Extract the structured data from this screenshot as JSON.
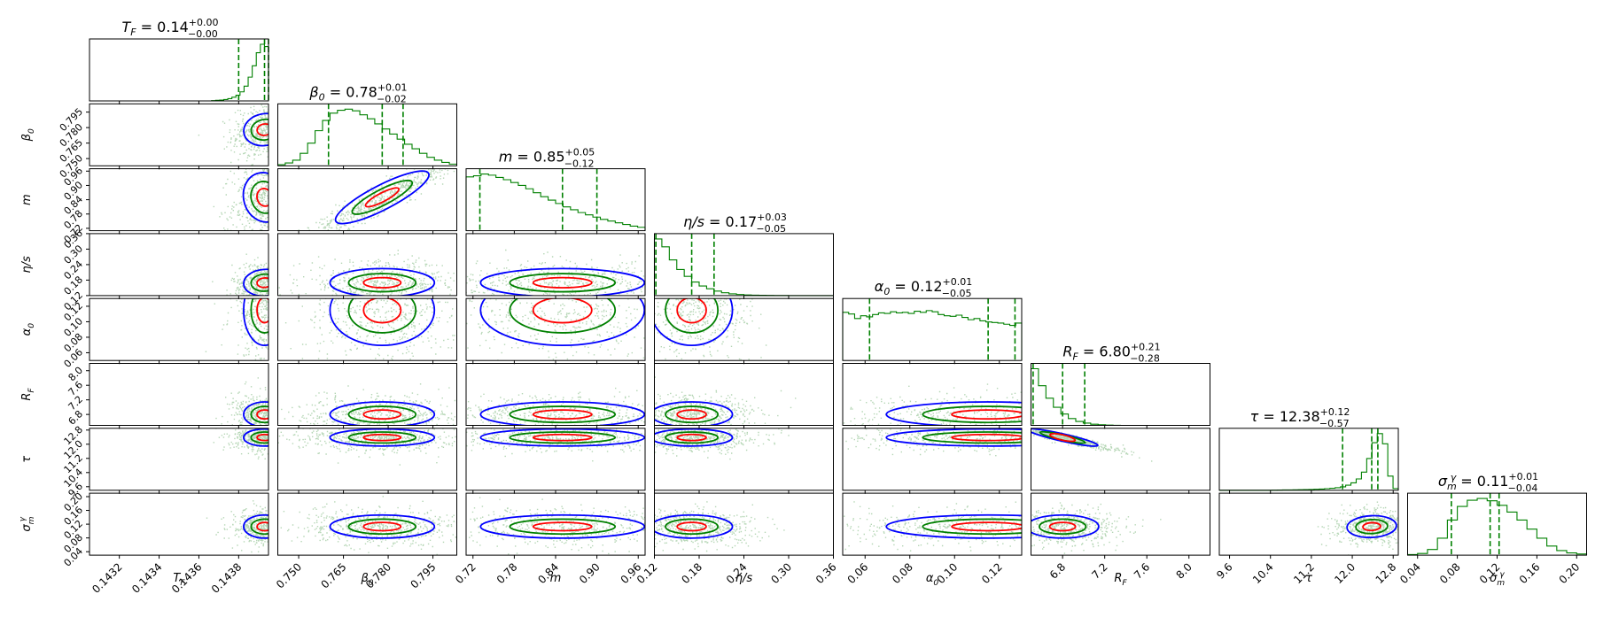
{
  "chart_data": {
    "type": "corner",
    "parameters": [
      {
        "symbol": "T_F",
        "median": "0.14",
        "plus": "+0.00",
        "minus": "−0.00",
        "axis_label": "T_F",
        "range": [
          0.14305,
          0.14395
        ],
        "ticks": [
          0.1432,
          0.1434,
          0.1436,
          0.1438
        ],
        "tick_labels": [
          "0.1432",
          "0.1434",
          "0.1436",
          "0.1438"
        ],
        "quantiles": [
          0.1438,
          0.14393,
          0.14395
        ],
        "hist": [
          0,
          0,
          0,
          0,
          0,
          0,
          0,
          0,
          0,
          0,
          0,
          0,
          0,
          0,
          0,
          0,
          0,
          0,
          0,
          0,
          0,
          0,
          0,
          0,
          0,
          0,
          0,
          0,
          0,
          0,
          0.005,
          0.01,
          0.015,
          0.025,
          0.04,
          0.065,
          0.1,
          0.16,
          0.26,
          0.42,
          0.62,
          0.85,
          1.0,
          0.96
        ]
      },
      {
        "symbol": "β_0",
        "median": "0.78",
        "plus": "+0.01",
        "minus": "−0.02",
        "axis_label": "β_0",
        "range": [
          0.743,
          0.803
        ],
        "ticks": [
          0.75,
          0.765,
          0.78,
          0.795
        ],
        "tick_labels": [
          "0.750",
          "0.765",
          "0.780",
          "0.795"
        ],
        "quantiles": [
          0.76,
          0.778,
          0.785
        ],
        "hist": [
          0.02,
          0.05,
          0.1,
          0.22,
          0.4,
          0.62,
          0.8,
          0.93,
          0.98,
          1.0,
          0.97,
          0.9,
          0.83,
          0.74,
          0.65,
          0.56,
          0.47,
          0.38,
          0.3,
          0.22,
          0.15,
          0.1,
          0.06,
          0.03
        ]
      },
      {
        "symbol": "m",
        "median": "0.85",
        "plus": "+0.05",
        "minus": "−0.12",
        "axis_label": "m",
        "range": [
          0.71,
          0.97
        ],
        "ticks": [
          0.72,
          0.78,
          0.84,
          0.9,
          0.96
        ],
        "tick_labels": [
          "0.72",
          "0.78",
          "0.84",
          "0.90",
          "0.96"
        ],
        "quantiles": [
          0.73,
          0.85,
          0.9
        ],
        "hist": [
          0.95,
          0.97,
          1.0,
          0.98,
          0.94,
          0.9,
          0.85,
          0.8,
          0.74,
          0.67,
          0.6,
          0.54,
          0.48,
          0.42,
          0.37,
          0.32,
          0.28,
          0.24,
          0.2,
          0.17,
          0.14,
          0.11,
          0.08,
          0.06
        ]
      },
      {
        "symbol": "η/s",
        "median": "0.17",
        "plus": "+0.03",
        "minus": "−0.05",
        "axis_label": "η/s",
        "range": [
          0.12,
          0.36
        ],
        "ticks": [
          0.12,
          0.18,
          0.24,
          0.3,
          0.36
        ],
        "tick_labels": [
          "0.12",
          "0.18",
          "0.24",
          "0.30",
          "0.36"
        ],
        "quantiles": [
          0.122,
          0.17,
          0.2
        ],
        "hist": [
          1.0,
          0.86,
          0.63,
          0.46,
          0.34,
          0.24,
          0.17,
          0.12,
          0.08,
          0.05,
          0.03,
          0.02,
          0.012,
          0.008,
          0.005,
          0.003,
          0.002,
          0.001,
          0,
          0,
          0,
          0,
          0,
          0
        ]
      },
      {
        "symbol": "α_0",
        "median": "0.12",
        "plus": "+0.01",
        "minus": "−0.05",
        "axis_label": "α_0",
        "range": [
          0.05,
          0.13
        ],
        "ticks": [
          0.06,
          0.08,
          0.1,
          0.12
        ],
        "tick_labels": [
          "0.06",
          "0.08",
          "0.10",
          "0.12"
        ],
        "quantiles": [
          0.062,
          0.115,
          0.127
        ],
        "hist": [
          0.85,
          0.82,
          0.74,
          0.79,
          0.77,
          0.81,
          0.84,
          0.83,
          0.86,
          0.84,
          0.85,
          0.83,
          0.87,
          0.85,
          0.88,
          0.86,
          0.81,
          0.79,
          0.78,
          0.8,
          0.76,
          0.72,
          0.74,
          0.7,
          0.68,
          0.67,
          0.66,
          0.64,
          0.62,
          0.66
        ]
      },
      {
        "symbol": "R_F",
        "median": "6.80",
        "plus": "+0.21",
        "minus": "−0.28",
        "axis_label": "R_F",
        "range": [
          6.5,
          8.2
        ],
        "ticks": [
          6.8,
          7.2,
          7.6,
          8.0
        ],
        "tick_labels": [
          "6.8",
          "7.2",
          "7.6",
          "8.0"
        ],
        "quantiles": [
          6.52,
          6.8,
          7.01
        ],
        "hist": [
          1.0,
          0.7,
          0.48,
          0.32,
          0.2,
          0.12,
          0.07,
          0.04,
          0.02,
          0.01,
          0.005,
          0.002,
          0,
          0,
          0,
          0,
          0,
          0,
          0,
          0,
          0,
          0,
          0,
          0
        ]
      },
      {
        "symbol": "τ",
        "median": "12.38",
        "plus": "+0.12",
        "minus": "−0.57",
        "axis_label": "τ",
        "range": [
          9.4,
          12.9
        ],
        "ticks": [
          9.6,
          10.4,
          11.2,
          12.0,
          12.8
        ],
        "tick_labels": [
          "9.6",
          "10.4",
          "11.2",
          "12.0",
          "12.8"
        ],
        "quantiles": [
          11.81,
          12.38,
          12.5
        ],
        "hist": [
          0,
          0,
          0,
          0,
          0,
          0,
          0,
          0,
          0,
          0,
          0.002,
          0.003,
          0.005,
          0.006,
          0.008,
          0.01,
          0.012,
          0.014,
          0.018,
          0.022,
          0.028,
          0.035,
          0.045,
          0.06,
          0.09,
          0.13,
          0.2,
          0.32,
          0.56,
          0.84,
          1.0,
          0.82,
          0.25,
          0.03
        ]
      },
      {
        "symbol": "σ^γ_m",
        "median": "0.11",
        "plus": "+0.01",
        "minus": "−0.04",
        "axis_label": "σ^γ_m",
        "range": [
          0.03,
          0.21
        ],
        "ticks": [
          0.04,
          0.08,
          0.12,
          0.16,
          0.2
        ],
        "tick_labels": [
          "0.04",
          "0.08",
          "0.12",
          "0.16",
          "0.20"
        ],
        "quantiles": [
          0.074,
          0.113,
          0.122
        ],
        "hist": [
          0.01,
          0.03,
          0.1,
          0.3,
          0.62,
          0.86,
          0.97,
          1.0,
          0.96,
          0.88,
          0.76,
          0.62,
          0.46,
          0.3,
          0.16,
          0.08,
          0.04,
          0.02
        ]
      }
    ],
    "colors": {
      "points": "#2a8a2a",
      "hist": "#008000",
      "quantile": "#008000",
      "contour_levels": [
        "#0000ff",
        "#008000",
        "#ff0000"
      ]
    },
    "grid": false,
    "legend": "none"
  }
}
